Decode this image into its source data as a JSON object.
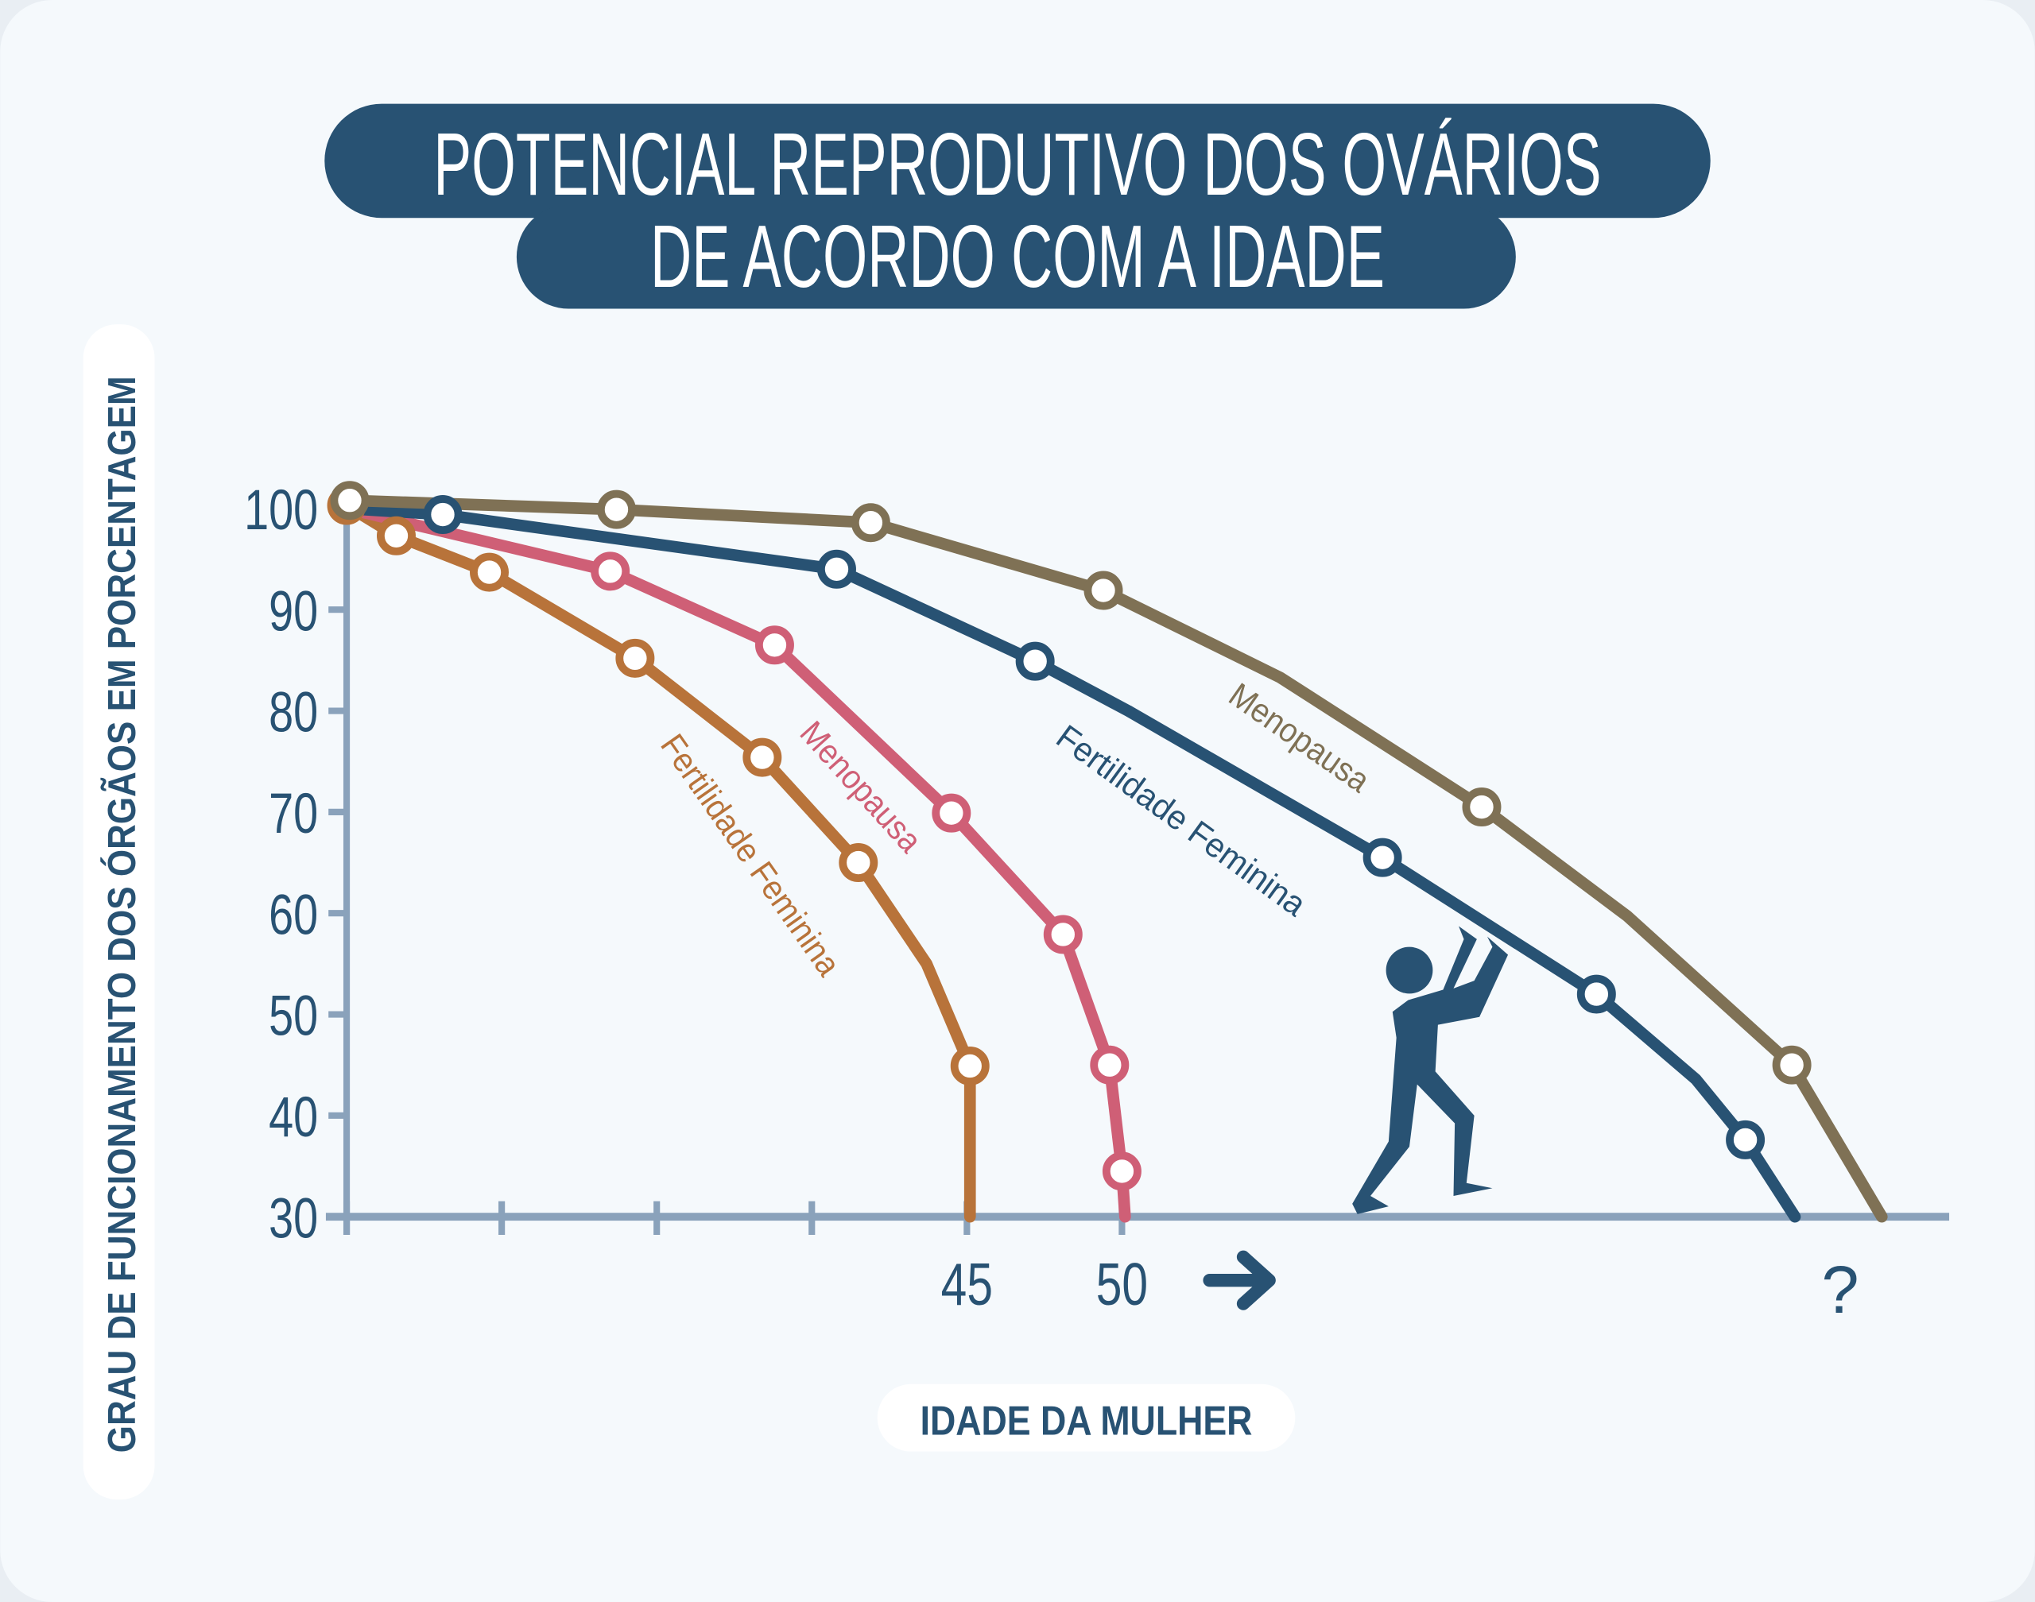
{
  "title": {
    "line1": "POTENCIAL REPRODUTIVO DOS OVÁRIOS",
    "line2": "DE ACORDO COM A IDADE"
  },
  "colors": {
    "navy": "#285273",
    "brown": "#7f7155",
    "pink": "#cf5f76",
    "orange": "#b8733a",
    "axis": "#8aa2bb",
    "background": "#f5f9fc"
  },
  "chart_data": {
    "type": "line",
    "title": "POTENCIAL REPRODUTIVO DOS OVÁRIOS DE ACORDO COM A IDADE",
    "xlabel": "IDADE DA MULHER",
    "ylabel": "GRAU DE FUNCIONAMENTO DOS ÓRGÃOS EM PORCENTAGEM",
    "xlim": [
      25,
      76
    ],
    "ylim": [
      30,
      100
    ],
    "x_ticks": [
      25,
      30,
      35,
      40,
      45,
      50
    ],
    "x_tick_labels": [
      {
        "x": 45,
        "label": "45"
      },
      {
        "x": 50,
        "label": "50"
      }
    ],
    "x_arrow": "arrow-right",
    "x_unknown_label": "?",
    "y_ticks": [
      100,
      90,
      80,
      70,
      60,
      50,
      40,
      30
    ],
    "y_tick_labels": [
      "100",
      "90",
      "80",
      "70",
      "60",
      "50",
      "40",
      "30"
    ],
    "grid": false,
    "series": [
      {
        "name": "Fertilidade Feminina (antes)",
        "label": "Fertilidade Feminina",
        "color": "#b8733a",
        "points": [
          [
            25,
            100.3,
            1
          ],
          [
            26.6,
            97.3,
            1
          ],
          [
            29.6,
            93.7,
            1
          ],
          [
            34.3,
            85.2,
            1
          ],
          [
            38.4,
            75.4,
            1
          ],
          [
            41.5,
            65,
            1
          ],
          [
            43.7,
            55,
            0
          ],
          [
            45.1,
            44.9,
            1
          ],
          [
            45.1,
            30,
            0
          ]
        ]
      },
      {
        "name": "Menopausa (antes)",
        "label": "Menopausa",
        "color": "#cf5f76",
        "points": [
          [
            25,
            100,
            0
          ],
          [
            33.5,
            93.8,
            1
          ],
          [
            38.8,
            86.5,
            1
          ],
          [
            44.5,
            69.9,
            1
          ],
          [
            48.1,
            57.9,
            1
          ],
          [
            49.6,
            45,
            1
          ],
          [
            50,
            34.5,
            1
          ],
          [
            50.1,
            30,
            0
          ]
        ]
      },
      {
        "name": "Fertilidade Feminina (hoje)",
        "label": "Fertilidade Feminina",
        "color": "#285273",
        "points": [
          [
            25,
            100,
            0
          ],
          [
            28.1,
            99.4,
            1
          ],
          [
            40.8,
            94,
            1
          ],
          [
            47.2,
            84.9,
            1
          ],
          [
            50.2,
            80,
            0
          ],
          [
            58.4,
            65.5,
            1
          ],
          [
            65.3,
            52,
            1
          ],
          [
            68.5,
            43.6,
            0
          ],
          [
            70.1,
            37.6,
            1
          ],
          [
            71.7,
            30,
            0
          ]
        ]
      },
      {
        "name": "Menopausa (hoje)",
        "label": "Menopausa",
        "color": "#7f7155",
        "points": [
          [
            25.1,
            100.8,
            1
          ],
          [
            33.7,
            99.9,
            1
          ],
          [
            41.9,
            98.6,
            1
          ],
          [
            49.4,
            91.9,
            1
          ],
          [
            55.1,
            83.3,
            0
          ],
          [
            61.6,
            70.5,
            1
          ],
          [
            66.3,
            59.7,
            0
          ],
          [
            71.6,
            45,
            1
          ],
          [
            74.5,
            30,
            0
          ]
        ]
      }
    ]
  }
}
